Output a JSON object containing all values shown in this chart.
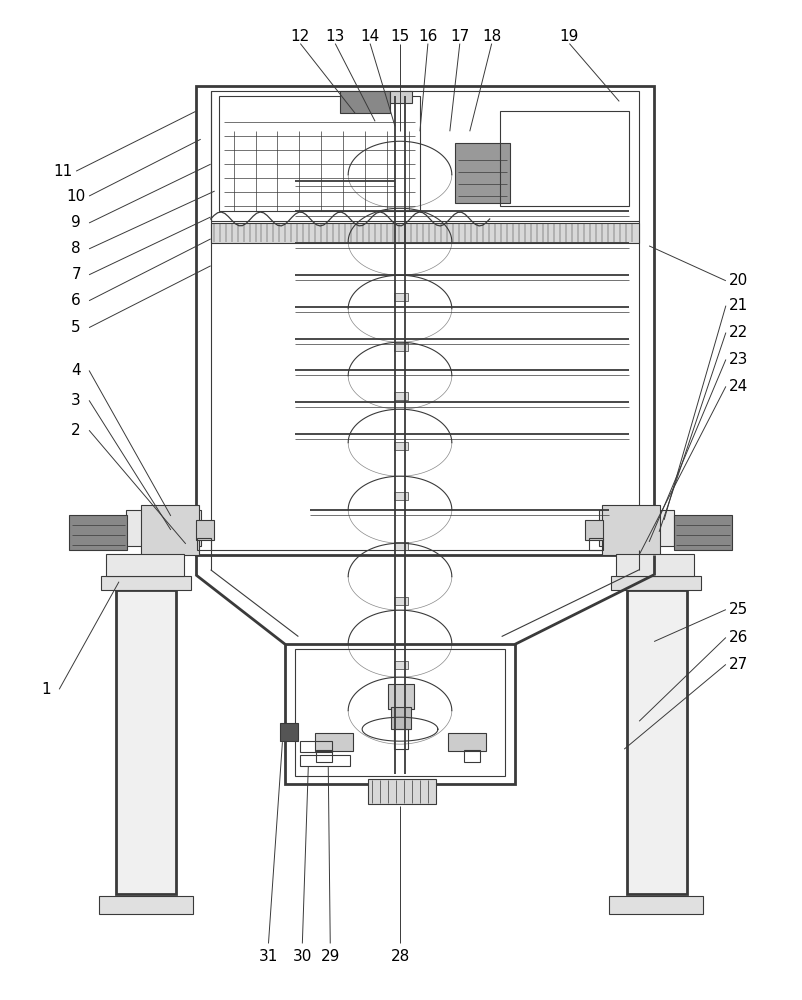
{
  "bg_color": "#ffffff",
  "line_color": "#3a3a3a",
  "label_color": "#000000",
  "fig_width": 8.03,
  "fig_height": 10.0
}
